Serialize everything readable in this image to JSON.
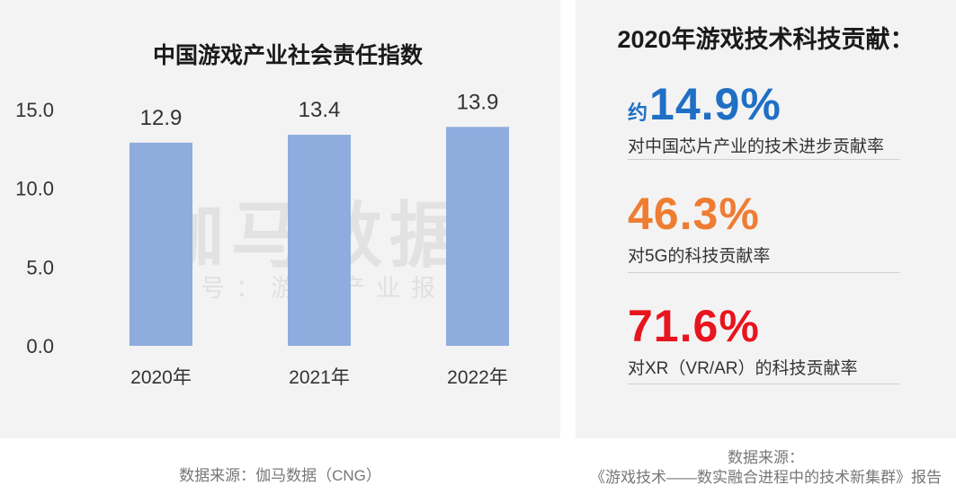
{
  "chart_data": {
    "type": "bar",
    "title": "中国游戏产业社会责任指数",
    "categories": [
      "2020年",
      "2021年",
      "2022年"
    ],
    "values": [
      12.9,
      13.4,
      13.9
    ],
    "value_labels": [
      "12.9",
      "13.4",
      "13.9"
    ],
    "yticks": [
      "15.0",
      "10.0",
      "5.0",
      "0.0"
    ],
    "ylim": [
      0,
      15
    ],
    "grid": false,
    "legend": "none",
    "colors": {
      "bar": "#8eacde"
    }
  },
  "watermark": {
    "main": "伽马数据",
    "sub": "微信号：游戏产业报告"
  },
  "right": {
    "title": "2020年游戏技术科技贡献：",
    "stats": [
      {
        "prefix": "约",
        "value": "14.9%",
        "desc": "对中国芯片产业的技术进步贡献率",
        "color": "#1f6fc4"
      },
      {
        "prefix": "",
        "value": "46.3%",
        "desc": "对5G的科技贡献率",
        "color": "#ee7d32"
      },
      {
        "prefix": "",
        "value": "71.6%",
        "desc": "对XR（VR/AR）的科技贡献率",
        "color": "#e8141e"
      }
    ]
  },
  "sources": {
    "left": "数据来源：伽马数据（CNG）",
    "right_line1": "数据来源：",
    "right_line2": "《游戏技术——数实融合进程中的技术新集群》报告"
  }
}
